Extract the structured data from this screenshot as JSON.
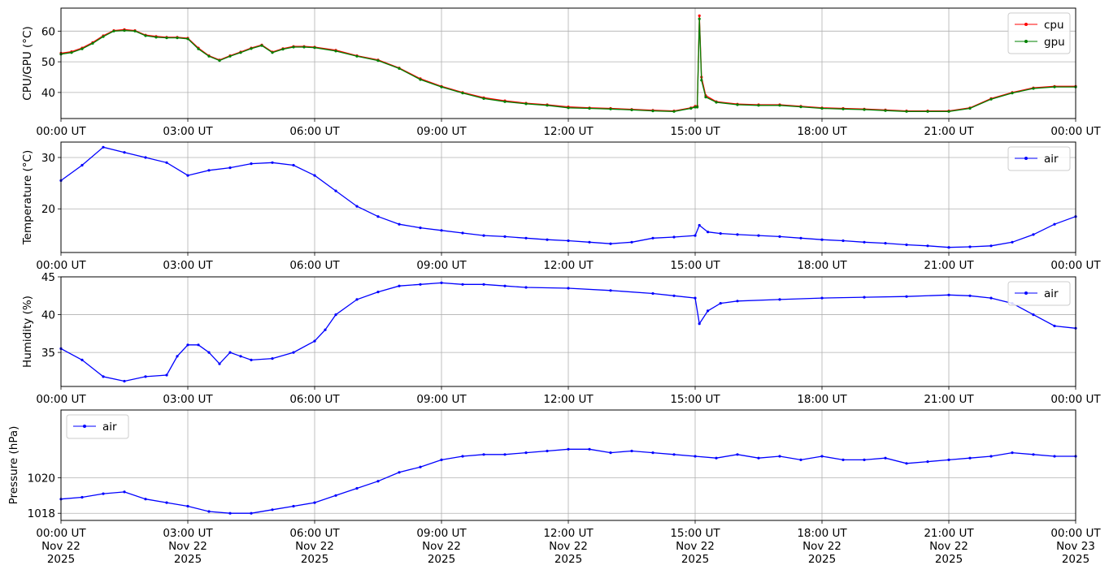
{
  "colors": {
    "cpu": "#ff0000",
    "gpu": "#008000",
    "air": "#0000ff"
  },
  "chart_data": [
    {
      "type": "line",
      "ylabel": "CPU/GPU (°C)",
      "xlabel": "",
      "ylim": [
        31.5,
        67.5
      ],
      "yticks": [
        40,
        50,
        60
      ],
      "grid": true,
      "legend_position": "top-right",
      "x_tick_labels": [
        "00:00 UT",
        "03:00 UT",
        "06:00 UT",
        "09:00 UT",
        "12:00 UT",
        "15:00 UT",
        "18:00 UT",
        "21:00 UT",
        "00:00 UT"
      ],
      "x_hours": [
        0,
        0.25,
        0.5,
        0.75,
        1,
        1.25,
        1.5,
        1.75,
        2,
        2.25,
        2.5,
        2.75,
        3,
        3.25,
        3.5,
        3.75,
        4,
        4.25,
        4.5,
        4.75,
        5,
        5.25,
        5.5,
        5.75,
        6,
        6.5,
        7,
        7.5,
        8,
        8.5,
        9,
        9.5,
        10,
        10.5,
        11,
        11.5,
        12,
        12.5,
        13,
        13.5,
        14,
        14.5,
        14.9,
        15.0,
        15.05,
        15.1,
        15.15,
        15.25,
        15.5,
        16,
        16.5,
        17,
        17.5,
        18,
        18.5,
        19,
        19.5,
        20,
        20.5,
        21,
        21.5,
        22,
        22.5,
        23,
        23.5,
        24
      ],
      "series": [
        {
          "name": "cpu",
          "color": "#ff0000",
          "values": [
            52.8,
            53.3,
            54.5,
            56.3,
            58.5,
            60.2,
            60.5,
            60.2,
            58.7,
            58.3,
            58.0,
            58.0,
            57.7,
            54.5,
            52.0,
            50.6,
            52.0,
            53.2,
            54.5,
            55.5,
            53.2,
            54.3,
            55.0,
            55.0,
            54.8,
            53.8,
            52.0,
            50.6,
            48.0,
            44.5,
            42.0,
            40.0,
            38.3,
            37.3,
            36.5,
            36.0,
            35.3,
            35.0,
            34.8,
            34.5,
            34.2,
            34.0,
            35.0,
            35.5,
            35.5,
            65.0,
            45.0,
            39.0,
            37.0,
            36.2,
            36.0,
            36.0,
            35.5,
            35.0,
            34.8,
            34.6,
            34.3,
            34.0,
            34.0,
            34.0,
            35.0,
            38.0,
            40.0,
            41.5,
            42.0,
            42.0
          ]
        },
        {
          "name": "gpu",
          "color": "#008000",
          "values": [
            52.5,
            53.0,
            54.2,
            56.0,
            58.2,
            60.0,
            60.2,
            60.0,
            58.5,
            58.0,
            57.8,
            57.8,
            57.5,
            54.2,
            51.8,
            50.4,
            51.8,
            53.0,
            54.3,
            55.3,
            53.0,
            54.1,
            54.8,
            54.8,
            54.6,
            53.5,
            51.8,
            50.4,
            47.8,
            44.2,
            41.8,
            39.8,
            38.0,
            37.0,
            36.3,
            35.8,
            35.0,
            34.8,
            34.6,
            34.3,
            34.0,
            33.8,
            34.8,
            35.2,
            35.2,
            64.0,
            44.0,
            38.5,
            36.8,
            36.0,
            35.8,
            35.8,
            35.3,
            34.8,
            34.6,
            34.4,
            34.1,
            33.8,
            33.8,
            33.8,
            34.8,
            37.8,
            39.8,
            41.3,
            41.8,
            41.8
          ]
        }
      ]
    },
    {
      "type": "line",
      "ylabel": "Temperature (°C)",
      "xlabel": "",
      "ylim": [
        11.5,
        33
      ],
      "yticks": [
        20,
        30
      ],
      "grid": true,
      "legend_position": "top-right",
      "x_tick_labels": [
        "00:00 UT",
        "03:00 UT",
        "06:00 UT",
        "09:00 UT",
        "12:00 UT",
        "15:00 UT",
        "18:00 UT",
        "21:00 UT",
        "00:00 UT"
      ],
      "x_hours": [
        0,
        0.5,
        1,
        1.5,
        2,
        2.5,
        3,
        3.5,
        4,
        4.5,
        5,
        5.5,
        6,
        6.5,
        7,
        7.5,
        8,
        8.5,
        9,
        9.5,
        10,
        10.5,
        11,
        11.5,
        12,
        12.5,
        13,
        13.5,
        14,
        14.5,
        15,
        15.1,
        15.3,
        15.6,
        16,
        16.5,
        17,
        17.5,
        18,
        18.5,
        19,
        19.5,
        20,
        20.5,
        21,
        21.5,
        22,
        22.5,
        23,
        23.5,
        24
      ],
      "series": [
        {
          "name": "air",
          "color": "#0000ff",
          "values": [
            25.5,
            28.5,
            32.0,
            31.0,
            30.0,
            29.0,
            26.5,
            27.5,
            28.0,
            28.8,
            29.0,
            28.5,
            26.5,
            23.5,
            20.5,
            18.5,
            17.0,
            16.3,
            15.8,
            15.3,
            14.8,
            14.6,
            14.3,
            14.0,
            13.8,
            13.5,
            13.2,
            13.5,
            14.3,
            14.5,
            14.8,
            16.8,
            15.5,
            15.2,
            15.0,
            14.8,
            14.6,
            14.3,
            14.0,
            13.8,
            13.5,
            13.3,
            13.0,
            12.8,
            12.5,
            12.6,
            12.8,
            13.5,
            15.0,
            17.0,
            18.5
          ]
        }
      ]
    },
    {
      "type": "line",
      "ylabel": "Humidity (%)",
      "xlabel": "",
      "ylim": [
        30.5,
        45
      ],
      "yticks": [
        35,
        40,
        45
      ],
      "grid": true,
      "legend_position": "top-right",
      "x_tick_labels": [
        "00:00 UT",
        "03:00 UT",
        "06:00 UT",
        "09:00 UT",
        "12:00 UT",
        "15:00 UT",
        "18:00 UT",
        "21:00 UT",
        "00:00 UT"
      ],
      "x_hours": [
        0,
        0.5,
        1,
        1.5,
        2,
        2.5,
        2.75,
        3,
        3.25,
        3.5,
        3.75,
        4,
        4.25,
        4.5,
        5,
        5.5,
        6,
        6.25,
        6.5,
        7,
        7.5,
        8,
        8.5,
        9,
        9.5,
        10,
        10.5,
        11,
        12,
        13,
        14,
        14.5,
        15,
        15.1,
        15.3,
        15.6,
        16,
        17,
        18,
        19,
        20,
        21,
        21.5,
        22,
        22.5,
        23,
        23.5,
        24
      ],
      "series": [
        {
          "name": "air",
          "color": "#0000ff",
          "values": [
            35.5,
            34.0,
            31.8,
            31.2,
            31.8,
            32.0,
            34.5,
            36.0,
            36.0,
            35.0,
            33.5,
            35.0,
            34.5,
            34.0,
            34.2,
            35.0,
            36.5,
            38.0,
            40.0,
            42.0,
            43.0,
            43.8,
            44.0,
            44.2,
            44.0,
            44.0,
            43.8,
            43.6,
            43.5,
            43.2,
            42.8,
            42.5,
            42.2,
            38.8,
            40.5,
            41.5,
            41.8,
            42.0,
            42.2,
            42.3,
            42.4,
            42.6,
            42.5,
            42.2,
            41.5,
            40.0,
            38.5,
            38.2
          ]
        }
      ]
    },
    {
      "type": "line",
      "ylabel": "Pressure (hPa)",
      "xlabel": "",
      "ylim": [
        1017.6,
        1023.8
      ],
      "yticks": [
        1018,
        1020
      ],
      "grid": true,
      "legend_position": "top-left",
      "x_tick_labels": [
        "00:00 UT\nNov 22\n2025",
        "03:00 UT\nNov 22\n2025",
        "06:00 UT\nNov 22\n2025",
        "09:00 UT\nNov 22\n2025",
        "12:00 UT\nNov 22\n2025",
        "15:00 UT\nNov 22\n2025",
        "18:00 UT\nNov 22\n2025",
        "21:00 UT\nNov 22\n2025",
        "00:00 UT\nNov 23\n2025"
      ],
      "x_hours": [
        0,
        0.5,
        1,
        1.5,
        2,
        2.5,
        3,
        3.5,
        4,
        4.5,
        5,
        5.5,
        6,
        6.5,
        7,
        7.5,
        8,
        8.5,
        9,
        9.5,
        10,
        10.5,
        11,
        11.5,
        12,
        12.5,
        13,
        13.5,
        14,
        14.5,
        15,
        15.5,
        16,
        16.5,
        17,
        17.5,
        18,
        18.5,
        19,
        19.5,
        20,
        20.5,
        21,
        21.5,
        22,
        22.5,
        23,
        23.5,
        24
      ],
      "series": [
        {
          "name": "air",
          "color": "#0000ff",
          "values": [
            1018.8,
            1018.9,
            1019.1,
            1019.2,
            1018.8,
            1018.6,
            1018.4,
            1018.1,
            1018.0,
            1018.0,
            1018.2,
            1018.4,
            1018.6,
            1019.0,
            1019.4,
            1019.8,
            1020.3,
            1020.6,
            1021.0,
            1021.2,
            1021.3,
            1021.3,
            1021.4,
            1021.5,
            1021.6,
            1021.6,
            1021.4,
            1021.5,
            1021.4,
            1021.3,
            1021.2,
            1021.1,
            1021.3,
            1021.1,
            1021.2,
            1021.0,
            1021.2,
            1021.0,
            1021.0,
            1021.1,
            1020.8,
            1020.9,
            1021.0,
            1021.1,
            1021.2,
            1021.4,
            1021.3,
            1021.2,
            1021.2
          ]
        }
      ]
    }
  ]
}
